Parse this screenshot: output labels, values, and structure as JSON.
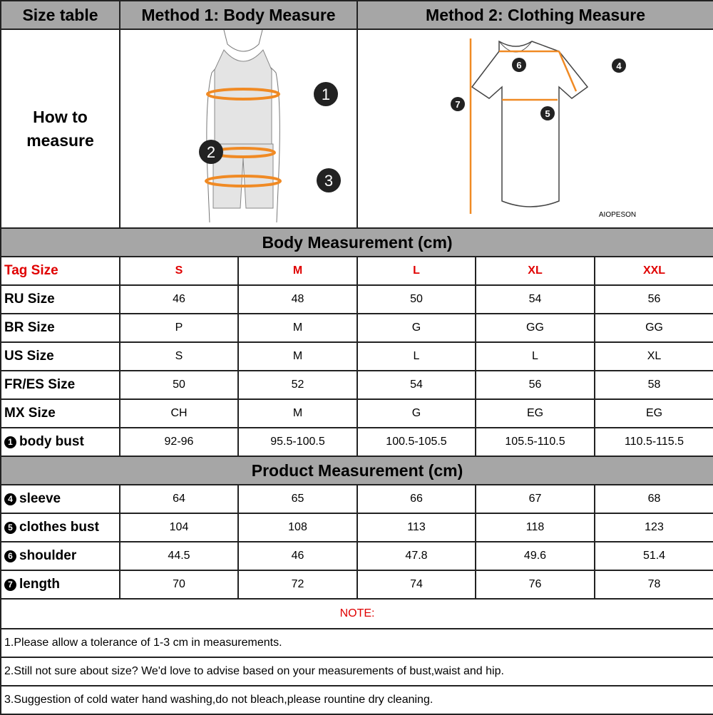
{
  "header": {
    "size_table": "Size table",
    "method1": "Method 1: Body  Measure",
    "method2": "Method 2: Clothing Measure"
  },
  "how_to": {
    "line1": "How to",
    "line2": "measure"
  },
  "illustrations": {
    "body_markers": [
      "1",
      "2",
      "3"
    ],
    "shirt_markers": [
      "4",
      "5",
      "6",
      "7"
    ],
    "brand": "AIOPESON",
    "accent": "#f08a24"
  },
  "body_section": "Body Measurement (cm)",
  "product_section": "Product Measurement (cm)",
  "tag_row": {
    "label": "Tag Size",
    "values": [
      "S",
      "M",
      "L",
      "XL",
      "XXL"
    ],
    "color": "#e00000"
  },
  "body_rows": [
    {
      "label": "RU Size",
      "values": [
        "46",
        "48",
        "50",
        "54",
        "56"
      ]
    },
    {
      "label": "BR Size",
      "values": [
        "P",
        "M",
        "G",
        "GG",
        "GG"
      ]
    },
    {
      "label": "US Size",
      "values": [
        "S",
        "M",
        "L",
        "L",
        "XL"
      ]
    },
    {
      "label": "FR/ES Size",
      "values": [
        "50",
        "52",
        "54",
        "56",
        "58"
      ]
    },
    {
      "label": "MX Size",
      "values": [
        "CH",
        "M",
        "G",
        "EG",
        "EG"
      ]
    },
    {
      "marker": "1",
      "label": "body bust",
      "values": [
        "92-96",
        "95.5-100.5",
        "100.5-105.5",
        "105.5-110.5",
        "110.5-115.5"
      ]
    }
  ],
  "product_rows": [
    {
      "marker": "4",
      "label": "sleeve",
      "values": [
        "64",
        "65",
        "66",
        "67",
        "68"
      ]
    },
    {
      "marker": "5",
      "label": "clothes bust",
      "values": [
        "104",
        "108",
        "113",
        "118",
        "123"
      ]
    },
    {
      "marker": "6",
      "label": "shoulder",
      "values": [
        "44.5",
        "46",
        "47.8",
        "49.6",
        "51.4"
      ]
    },
    {
      "marker": "7",
      "label": "length",
      "values": [
        "70",
        "72",
        "74",
        "76",
        "78"
      ]
    }
  ],
  "note": {
    "title": "NOTE:",
    "lines": [
      "1.Please allow a tolerance of 1-3 cm in measurements.",
      "2.Still not sure about size? We'd love to advise based on your measurements of bust,waist and hip.",
      "3.Suggestion of cold water hand washing,do not bleach,please rountine dry cleaning."
    ]
  }
}
